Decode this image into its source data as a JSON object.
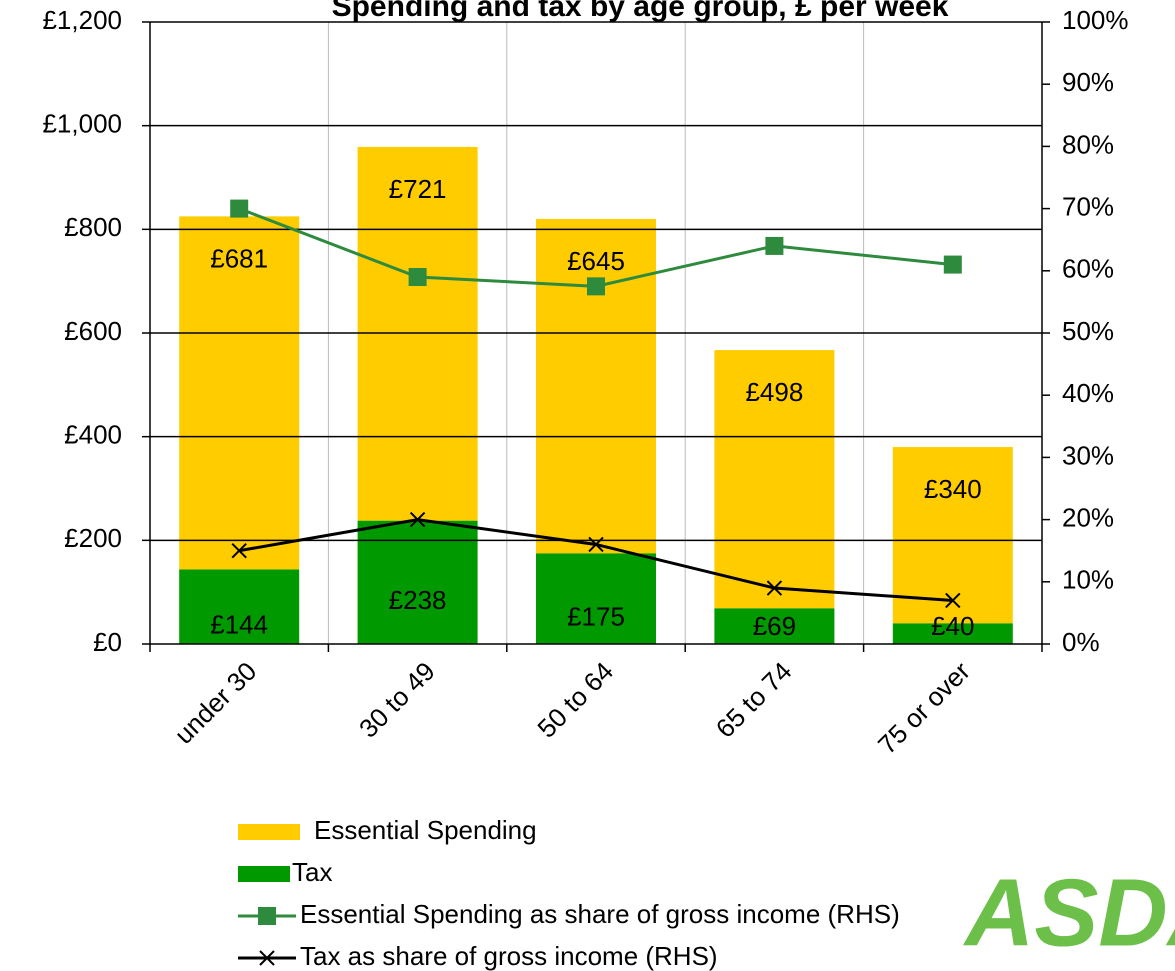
{
  "chart_data": {
    "type": "bar",
    "title": "Spending and tax by age group, £ per week",
    "categories": [
      "under 30",
      "30 to 49",
      "50 to 64",
      "65 to 74",
      "75 or over"
    ],
    "series": [
      {
        "name": "Tax",
        "color": "#009900",
        "values": [
          144,
          238,
          175,
          69,
          40
        ],
        "value_labels": [
          "£144",
          "£238",
          "£175",
          "£69",
          "£40"
        ]
      },
      {
        "name": "Essential Spending",
        "color": "#ffcc00",
        "values": [
          681,
          721,
          645,
          498,
          340
        ],
        "value_labels": [
          "£681",
          "£721",
          "£645",
          "£498",
          "£340"
        ]
      },
      {
        "name": "Essential Spending as share of gross income (RHS)",
        "color": "#2e8b3e",
        "type": "line",
        "marker": "square",
        "axis": "y2",
        "values": [
          70,
          59,
          57.5,
          64,
          61
        ]
      },
      {
        "name": "Tax as share of gross income (RHS)",
        "color": "#000000",
        "type": "line",
        "marker": "x",
        "axis": "y2",
        "values": [
          15,
          20,
          16,
          9,
          7
        ]
      }
    ],
    "ylim": [
      0,
      1200
    ],
    "yticks": [
      {
        "value": 0,
        "label": "£0"
      },
      {
        "value": 200,
        "label": "£200"
      },
      {
        "value": 400,
        "label": "£400"
      },
      {
        "value": 600,
        "label": "£600"
      },
      {
        "value": 800,
        "label": "£800"
      },
      {
        "value": 1000,
        "label": "£1,000"
      },
      {
        "value": 1200,
        "label": "£1,200"
      }
    ],
    "y2lim": [
      0,
      100
    ],
    "y2ticks": [
      {
        "value": 0,
        "label": "0%"
      },
      {
        "value": 10,
        "label": "10%"
      },
      {
        "value": 20,
        "label": "20%"
      },
      {
        "value": 30,
        "label": "30%"
      },
      {
        "value": 40,
        "label": "40%"
      },
      {
        "value": 50,
        "label": "50%"
      },
      {
        "value": 60,
        "label": "60%"
      },
      {
        "value": 70,
        "label": "70%"
      },
      {
        "value": 80,
        "label": "80%"
      },
      {
        "value": 90,
        "label": "90%"
      },
      {
        "value": 100,
        "label": "100%"
      }
    ],
    "grid": true,
    "legend": "bottom",
    "logo": "ASDA"
  }
}
